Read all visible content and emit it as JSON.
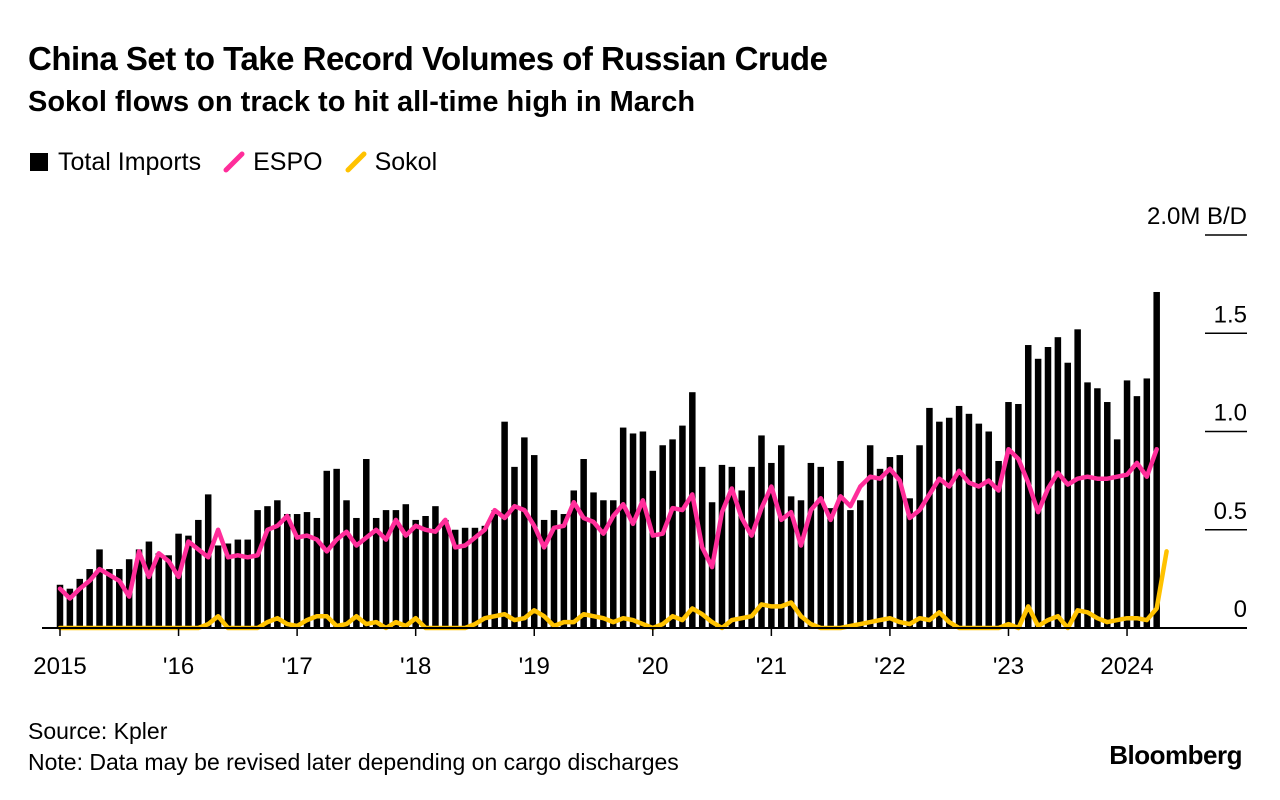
{
  "chart_data": {
    "type": "bar",
    "title": "China Set to Take Record Volumes of Russian Crude",
    "subtitle": "Sokol flows on track to hit all-time high in March",
    "unit_label": "2.0M B/D",
    "ylim": [
      0,
      2.0
    ],
    "y_ticks": [
      {
        "value": 0,
        "label": "0"
      },
      {
        "value": 0.5,
        "label": "0.5"
      },
      {
        "value": 1.0,
        "label": "1.0"
      },
      {
        "value": 1.5,
        "label": "1.5"
      },
      {
        "value": 2.0,
        "label": "2.0M B/D"
      }
    ],
    "x_ticks": [
      {
        "label": "2015",
        "index": 0
      },
      {
        "label": "'16",
        "index": 12
      },
      {
        "label": "'17",
        "index": 24
      },
      {
        "label": "'18",
        "index": 36
      },
      {
        "label": "'19",
        "index": 48
      },
      {
        "label": "'20",
        "index": 60
      },
      {
        "label": "'21",
        "index": 72
      },
      {
        "label": "'22",
        "index": 84
      },
      {
        "label": "'23",
        "index": 96
      },
      {
        "label": "2024",
        "index": 108
      }
    ],
    "start_month": "2015-01",
    "grid": true,
    "legend": "top-left",
    "series": [
      {
        "name": "Total Imports",
        "type": "bar",
        "color": "#000000",
        "values": [
          0.22,
          0.2,
          0.25,
          0.3,
          0.4,
          0.3,
          0.3,
          0.35,
          0.4,
          0.44,
          0.38,
          0.37,
          0.48,
          0.47,
          0.55,
          0.68,
          0.42,
          0.43,
          0.45,
          0.45,
          0.6,
          0.62,
          0.65,
          0.58,
          0.58,
          0.59,
          0.56,
          0.8,
          0.81,
          0.65,
          0.56,
          0.86,
          0.56,
          0.6,
          0.6,
          0.63,
          0.55,
          0.57,
          0.62,
          0.55,
          0.5,
          0.51,
          0.51,
          0.52,
          0.6,
          1.05,
          0.82,
          0.97,
          0.88,
          0.55,
          0.6,
          0.58,
          0.7,
          0.86,
          0.69,
          0.65,
          0.65,
          1.02,
          0.99,
          1.0,
          0.8,
          0.93,
          0.96,
          1.03,
          1.2,
          0.82,
          0.64,
          0.83,
          0.82,
          0.7,
          0.82,
          0.98,
          0.84,
          0.93,
          0.67,
          0.65,
          0.84,
          0.82,
          0.61,
          0.85,
          0.6,
          0.65,
          0.93,
          0.81,
          0.87,
          0.88,
          0.66,
          0.93,
          1.12,
          1.05,
          1.07,
          1.13,
          1.09,
          1.04,
          1.0,
          0.85,
          1.15,
          1.14,
          1.44,
          1.37,
          1.43,
          1.48,
          1.35,
          1.52,
          1.25,
          1.22,
          1.15,
          0.96,
          1.26,
          1.18,
          1.27,
          1.71
        ]
      },
      {
        "name": "ESPO",
        "type": "line",
        "color": "#ff2d9a",
        "values": [
          0.2,
          0.15,
          0.2,
          0.24,
          0.3,
          0.27,
          0.24,
          0.16,
          0.39,
          0.26,
          0.38,
          0.34,
          0.26,
          0.44,
          0.4,
          0.36,
          0.5,
          0.36,
          0.37,
          0.36,
          0.37,
          0.5,
          0.52,
          0.57,
          0.46,
          0.47,
          0.45,
          0.39,
          0.45,
          0.49,
          0.42,
          0.46,
          0.5,
          0.45,
          0.55,
          0.47,
          0.52,
          0.5,
          0.49,
          0.55,
          0.41,
          0.42,
          0.46,
          0.5,
          0.6,
          0.56,
          0.62,
          0.6,
          0.52,
          0.41,
          0.51,
          0.52,
          0.64,
          0.56,
          0.54,
          0.48,
          0.57,
          0.63,
          0.53,
          0.65,
          0.47,
          0.48,
          0.61,
          0.6,
          0.68,
          0.41,
          0.31,
          0.59,
          0.71,
          0.56,
          0.47,
          0.61,
          0.72,
          0.55,
          0.59,
          0.42,
          0.6,
          0.66,
          0.55,
          0.67,
          0.62,
          0.72,
          0.77,
          0.76,
          0.81,
          0.75,
          0.56,
          0.6,
          0.68,
          0.76,
          0.72,
          0.8,
          0.74,
          0.72,
          0.75,
          0.7,
          0.91,
          0.86,
          0.74,
          0.59,
          0.71,
          0.79,
          0.73,
          0.76,
          0.77,
          0.76,
          0.76,
          0.77,
          0.78,
          0.84,
          0.77,
          0.91
        ]
      },
      {
        "name": "Sokol",
        "type": "line",
        "color": "#ffc200",
        "values": [
          0,
          0,
          0,
          0,
          0,
          0,
          0,
          0,
          0,
          0,
          0,
          0,
          0,
          0,
          0,
          0.02,
          0.06,
          0,
          0,
          0,
          0,
          0.03,
          0.05,
          0.02,
          0.01,
          0.04,
          0.06,
          0.06,
          0.01,
          0.02,
          0.06,
          0.02,
          0.03,
          0,
          0.03,
          0.01,
          0.05,
          0,
          0,
          0,
          0,
          0,
          0.02,
          0.05,
          0.06,
          0.07,
          0.04,
          0.05,
          0.09,
          0.06,
          0.01,
          0.03,
          0.03,
          0.07,
          0.06,
          0.05,
          0.03,
          0.05,
          0.04,
          0.02,
          0,
          0.02,
          0.06,
          0.04,
          0.1,
          0.07,
          0.03,
          0,
          0.04,
          0.05,
          0.06,
          0.12,
          0.11,
          0.11,
          0.13,
          0.06,
          0.02,
          0,
          0,
          0,
          0.01,
          0.02,
          0.03,
          0.04,
          0.05,
          0.03,
          0.02,
          0.05,
          0.04,
          0.08,
          0.03,
          0,
          0,
          0,
          0,
          0,
          0.02,
          0,
          0.11,
          0.01,
          0.04,
          0.06,
          0,
          0.09,
          0.08,
          0.05,
          0.03,
          0.04,
          0.05,
          0.05,
          0.04,
          0.1,
          0.39
        ]
      }
    ]
  },
  "legend_items": [
    {
      "label": "Total Imports",
      "color": "#000000",
      "symbol": "square"
    },
    {
      "label": "ESPO",
      "color": "#ff2d9a",
      "symbol": "line"
    },
    {
      "label": "Sokol",
      "color": "#ffc200",
      "symbol": "line"
    }
  ],
  "footer": {
    "source": "Source: Kpler",
    "note": "Note: Data may be revised later depending on cargo discharges",
    "brand": "Bloomberg"
  }
}
